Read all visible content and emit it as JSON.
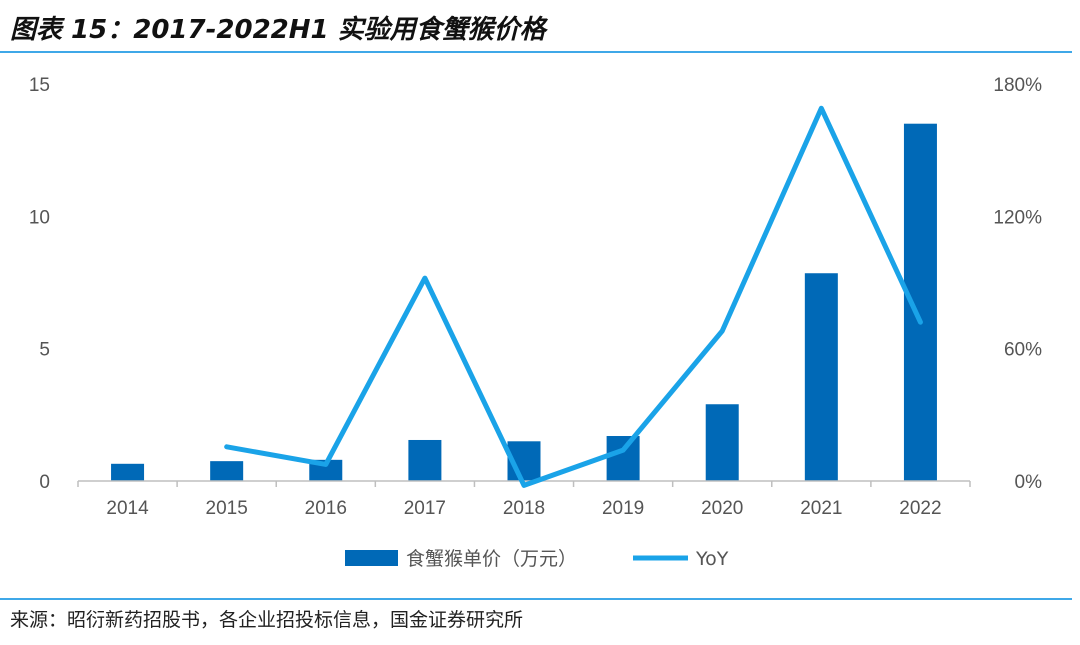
{
  "header": {
    "title": "图表 15：2017-2022H1 实验用食蟹猴价格"
  },
  "footer": {
    "source": "来源：昭衍新药招股书，各企业招投标信息，国金证券研究所"
  },
  "colors": {
    "bar": "#0069B7",
    "line": "#1AA3E8",
    "rule": "#3FA8E8"
  },
  "chart_data": {
    "type": "bar",
    "categories": [
      "2014",
      "2015",
      "2016",
      "2017",
      "2018",
      "2019",
      "2020",
      "2021",
      "2022"
    ],
    "series": [
      {
        "name": "食蟹猴单价（万元）",
        "type": "bar",
        "axis": "left",
        "values": [
          0.65,
          0.75,
          0.8,
          1.55,
          1.5,
          1.7,
          2.9,
          7.85,
          13.5
        ]
      },
      {
        "name": "YoY",
        "type": "line",
        "axis": "right",
        "values": [
          null,
          0.155,
          0.075,
          0.92,
          -0.02,
          0.14,
          0.68,
          1.69,
          0.72
        ]
      }
    ],
    "y_left": {
      "ylim": [
        0,
        15
      ],
      "ticks": [
        "0",
        "5",
        "10",
        "15"
      ]
    },
    "y_right": {
      "ylim": [
        0,
        1.8
      ],
      "ticks": [
        "0%",
        "60%",
        "120%",
        "180%"
      ]
    },
    "legend": {
      "placement": "bottom"
    },
    "grid": false
  }
}
